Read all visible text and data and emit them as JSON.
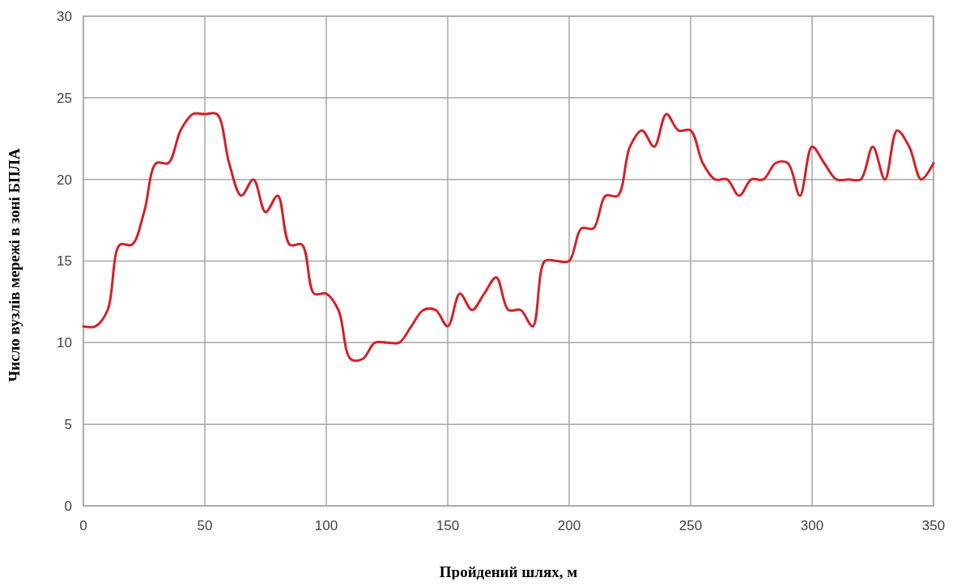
{
  "chart_data": {
    "type": "line",
    "xlabel": "Пройдений шлях, м",
    "ylabel": "Число вузлів мережі в зоні БПЛА",
    "x": [
      0,
      5,
      10,
      15,
      20,
      25,
      30,
      35,
      40,
      45,
      50,
      55,
      60,
      65,
      70,
      75,
      80,
      85,
      90,
      95,
      100,
      105,
      110,
      115,
      120,
      125,
      130,
      135,
      140,
      145,
      150,
      155,
      160,
      165,
      170,
      175,
      180,
      185,
      190,
      195,
      200,
      205,
      210,
      215,
      220,
      225,
      230,
      235,
      240,
      245,
      250,
      255,
      260,
      265,
      270,
      275,
      280,
      285,
      290,
      295,
      300,
      305,
      310,
      315,
      320,
      325,
      330,
      335,
      340,
      345,
      350
    ],
    "series": [
      {
        "color": "#d42027",
        "values": [
          11,
          11,
          12,
          16,
          16,
          18,
          21,
          21,
          23,
          24,
          24,
          24,
          21,
          19,
          20,
          18,
          19,
          16,
          16,
          13,
          13,
          12,
          9,
          9,
          10,
          10,
          10,
          11,
          12,
          12,
          11,
          13,
          12,
          13,
          14,
          12,
          12,
          11,
          15,
          15,
          15,
          17,
          17,
          19,
          19,
          22,
          23,
          22,
          24,
          23,
          23,
          21,
          20,
          20,
          19,
          20,
          20,
          21,
          21,
          19,
          22,
          21,
          20,
          20,
          20,
          22,
          20,
          23,
          22,
          20,
          21
        ]
      }
    ],
    "xlim": [
      0,
      350
    ],
    "xticks": [
      0,
      50,
      100,
      150,
      200,
      250,
      300,
      350
    ],
    "ylim": [
      0,
      30
    ],
    "yticks": [
      0,
      5,
      10,
      15,
      20,
      25,
      30
    ],
    "grid": true,
    "marker": "none",
    "line_style": "solid"
  }
}
